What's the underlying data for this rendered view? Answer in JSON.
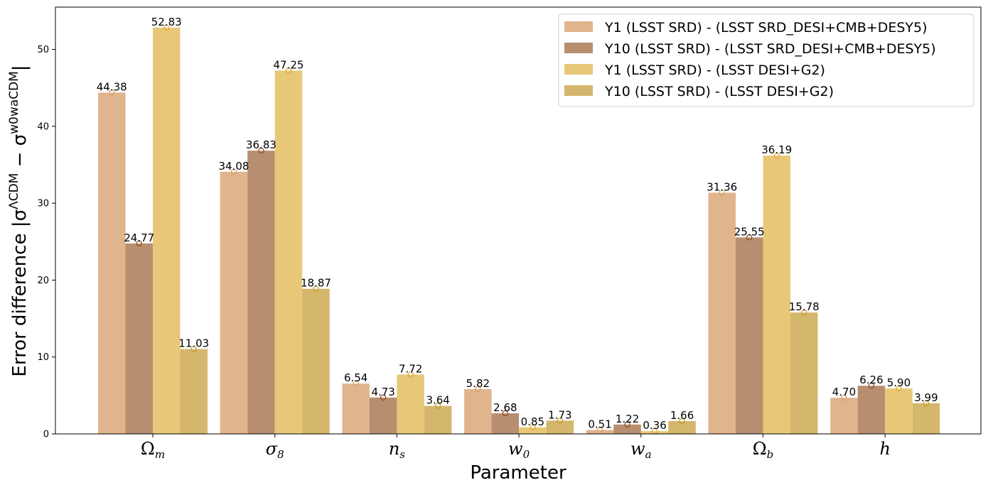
{
  "chart_data": {
    "type": "bar",
    "categories": [
      {
        "base": "Ω",
        "sub": "m"
      },
      {
        "base": "σ",
        "sub": "8"
      },
      {
        "base": "n",
        "sub": "s"
      },
      {
        "base": "w",
        "sub": "0"
      },
      {
        "base": "w",
        "sub": "a"
      },
      {
        "base": "Ω",
        "sub": "b"
      },
      {
        "base": "h",
        "sub": ""
      }
    ],
    "series": [
      {
        "name": "Y1 (LSST SRD) - (LSST SRD_DESI+CMB+DESY5)",
        "color": "#e0b48c",
        "marker_color": "#d9a06a",
        "values": [
          44.38,
          34.08,
          6.54,
          5.82,
          0.51,
          31.36,
          4.7
        ],
        "labels": [
          "44.38",
          "34.08",
          "6.54",
          "5.82",
          "0.51",
          "31.36",
          "4.70"
        ]
      },
      {
        "name": "Y10 (LSST SRD) - (LSST SRD_DESI+CMB+DESY5)",
        "color": "#b78f70",
        "marker_color": "#8b4a1e",
        "values": [
          24.77,
          36.83,
          4.73,
          2.68,
          1.22,
          25.55,
          6.26
        ],
        "labels": [
          "24.77",
          "36.83",
          "4.73",
          "2.68",
          "1.22",
          "25.55",
          "6.26"
        ]
      },
      {
        "name": "Y1 (LSST SRD) - (LSST DESI+G2)",
        "color": "#e8c878",
        "marker_color": "#e0a830",
        "values": [
          52.83,
          47.25,
          7.72,
          0.85,
          0.36,
          36.19,
          5.9
        ],
        "labels": [
          "52.83",
          "47.25",
          "7.72",
          "0.85",
          "0.36",
          "36.19",
          "5.90"
        ]
      },
      {
        "name": "Y10 (LSST SRD) - (LSST DESI+G2)",
        "color": "#d4b66c",
        "marker_color": "#c89a30",
        "values": [
          11.03,
          18.87,
          3.64,
          1.73,
          1.66,
          15.78,
          3.99
        ],
        "labels": [
          "11.03",
          "18.87",
          "3.64",
          "1.73",
          "1.66",
          "15.78",
          "3.99"
        ]
      }
    ],
    "xlabel": "Parameter",
    "ylabel": {
      "prefix": "Error difference  |σ",
      "sup1": "ΛCDM",
      "mid": " − σ",
      "sup2": "w0waCDM",
      "suffix": "|"
    },
    "ylim": [
      0,
      55.5
    ],
    "yticks": [
      "0",
      "10",
      "20",
      "30",
      "40",
      "50"
    ],
    "ytick_values": [
      0,
      10,
      20,
      30,
      40,
      50
    ],
    "grid": false,
    "legend_position": "top-right"
  }
}
